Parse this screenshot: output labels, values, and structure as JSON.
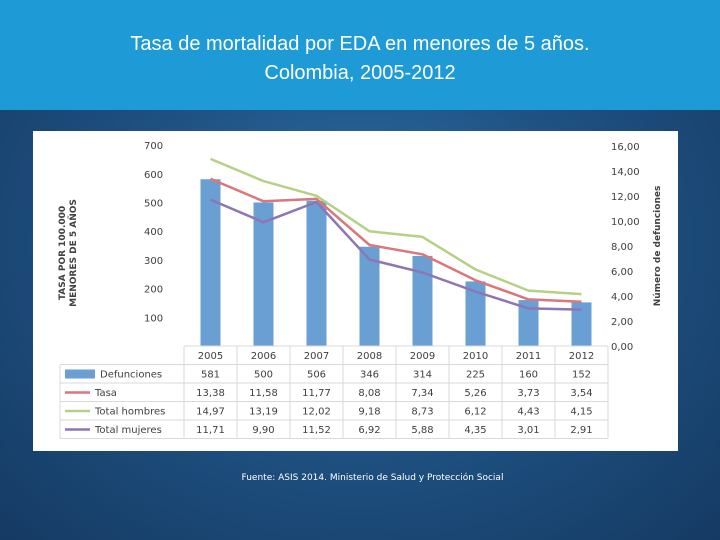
{
  "slide": {
    "title_line1": "Tasa de mortalidad por EDA en menores de 5 años.",
    "title_line2": "Colombia, 2005-2012",
    "source": "Fuente: ASIS 2014. Ministerio de Salud y Protección Social"
  },
  "colors": {
    "title_band": "#1e9ad6",
    "bars": "#6a9fd3",
    "tasa": "#d9777a",
    "hombres": "#b6d084",
    "mujeres": "#8c76b4",
    "grid": "#d9d9d9",
    "text": "#404040"
  },
  "chart_data": {
    "type": "bar",
    "categories": [
      "2005",
      "2006",
      "2007",
      "2008",
      "2009",
      "2010",
      "2011",
      "2012"
    ],
    "ylabel": "TASA POR 100.000 MENORES DE 5 AÑOS",
    "ylabel_line1": "TASA POR 100.000",
    "ylabel_line2": "MENORES DE 5 AÑOS",
    "y2label": "Número de defunciones",
    "ylim": [
      0,
      700
    ],
    "y2lim": [
      0,
      16
    ],
    "yticks": [
      "700",
      "600",
      "500",
      "400",
      "300",
      "200",
      "100"
    ],
    "y2ticks": [
      "16,00",
      "14,00",
      "12,00",
      "10,00",
      "8,00",
      "6,00",
      "4,00",
      "2,00",
      "0,00"
    ],
    "series": [
      {
        "name": "Defunciones",
        "kind": "bar",
        "axis": "left",
        "values": [
          581,
          500,
          506,
          346,
          314,
          225,
          160,
          152
        ],
        "labels": [
          "581",
          "500",
          "506",
          "346",
          "314",
          "225",
          "160",
          "152"
        ]
      },
      {
        "name": "Tasa",
        "kind": "line",
        "axis": "right",
        "values": [
          13.38,
          11.58,
          11.77,
          8.08,
          7.34,
          5.26,
          3.73,
          3.54
        ],
        "labels": [
          "13,38",
          "11,58",
          "11,77",
          "8,08",
          "7,34",
          "5,26",
          "3,73",
          "3,54"
        ]
      },
      {
        "name": "Total hombres",
        "kind": "line",
        "axis": "right",
        "values": [
          14.97,
          13.19,
          12.02,
          9.18,
          8.73,
          6.12,
          4.43,
          4.15
        ],
        "labels": [
          "14,97",
          "13,19",
          "12,02",
          "9,18",
          "8,73",
          "6,12",
          "4,43",
          "4,15"
        ]
      },
      {
        "name": "Total mujeres",
        "kind": "line",
        "axis": "right",
        "values": [
          11.71,
          9.9,
          11.52,
          6.92,
          5.88,
          4.35,
          3.01,
          2.91
        ],
        "labels": [
          "11,71",
          "9,90",
          "11,52",
          "6,92",
          "5,88",
          "4,35",
          "3,01",
          "2,91"
        ]
      }
    ]
  }
}
